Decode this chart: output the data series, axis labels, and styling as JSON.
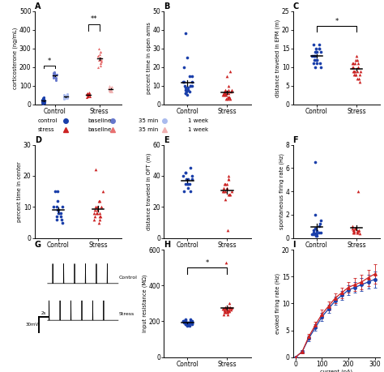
{
  "panel_A": {
    "ylabel": "corticosterone (ng/mL)",
    "control_baseline": [
      10,
      20,
      15,
      30,
      25,
      35,
      40,
      20,
      10,
      15,
      5,
      10,
      25,
      30,
      20
    ],
    "control_35min": [
      150,
      160,
      170,
      140,
      130,
      155,
      165,
      175,
      145,
      155,
      170,
      160,
      155,
      150,
      145
    ],
    "control_1week": [
      40,
      50,
      35,
      45,
      30,
      55,
      48,
      38,
      42,
      37,
      43,
      47,
      50,
      35,
      40
    ],
    "stress_baseline": [
      50,
      60,
      40,
      55,
      65,
      45,
      50,
      60,
      55,
      45,
      50,
      60,
      55,
      50,
      45
    ],
    "stress_35min": [
      220,
      240,
      280,
      200,
      260,
      300,
      250,
      230,
      270,
      210,
      240,
      280,
      220,
      260,
      240
    ],
    "stress_1week": [
      80,
      90,
      70,
      100,
      85,
      75,
      95,
      80,
      85,
      90,
      75,
      80,
      90,
      70,
      85
    ],
    "ylim": [
      0,
      500
    ],
    "yticks": [
      0,
      100,
      200,
      300,
      400,
      500
    ]
  },
  "panel_B": {
    "ylabel": "percent time in open arms",
    "control": [
      8,
      12,
      20,
      15,
      8,
      5,
      10,
      7,
      9,
      12,
      15,
      8,
      6,
      10,
      38,
      25,
      12,
      8,
      10,
      9,
      7,
      6,
      8,
      10
    ],
    "stress": [
      5,
      8,
      3,
      6,
      10,
      4,
      7,
      5,
      6,
      8,
      3,
      5,
      7,
      4,
      15,
      6,
      8,
      4,
      3,
      6,
      5,
      4,
      7,
      18
    ],
    "ylim": [
      0,
      50
    ],
    "yticks": [
      0,
      10,
      20,
      30,
      40,
      50
    ]
  },
  "panel_C": {
    "ylabel": "distance traveled in EPM (m)",
    "control": [
      12,
      14,
      16,
      10,
      13,
      15,
      11,
      14,
      12,
      13,
      16,
      11,
      14,
      15,
      10,
      12,
      13,
      14,
      11,
      13,
      15,
      12,
      14
    ],
    "stress": [
      9,
      11,
      8,
      10,
      12,
      7,
      9,
      11,
      8,
      10,
      9,
      11,
      8,
      10,
      12,
      7,
      9,
      11,
      8,
      10,
      9,
      13,
      6
    ],
    "ylim": [
      0,
      25
    ],
    "yticks": [
      0,
      5,
      10,
      15,
      20,
      25
    ],
    "sig": "*"
  },
  "panel_D": {
    "ylabel": "percent time in center",
    "control": [
      8,
      10,
      15,
      5,
      7,
      9,
      6,
      12,
      8,
      10,
      7,
      9,
      6,
      8,
      10,
      15
    ],
    "stress": [
      22,
      8,
      10,
      6,
      12,
      7,
      9,
      8,
      10,
      6,
      5,
      7,
      9,
      8,
      10,
      12,
      15,
      7,
      8
    ],
    "ylim": [
      0,
      30
    ],
    "yticks": [
      0,
      10,
      20,
      30
    ]
  },
  "panel_E": {
    "ylabel": "distance traveled in OFT (m)",
    "control": [
      35,
      40,
      30,
      38,
      42,
      35,
      45,
      38,
      32,
      40,
      35,
      38,
      42,
      30,
      35
    ],
    "stress": [
      30,
      35,
      28,
      32,
      40,
      28,
      35,
      30,
      25,
      38,
      5,
      30,
      35,
      28,
      32,
      38,
      30
    ],
    "ylim": [
      0,
      60
    ],
    "yticks": [
      0,
      20,
      40,
      60
    ]
  },
  "panel_F": {
    "ylabel": "spontaneous firing rate (Hz)",
    "control": [
      0.2,
      0.5,
      0.3,
      1.5,
      2.0,
      0.8,
      1.2,
      0.4,
      0.6,
      0.3,
      0.5,
      0.4,
      0.8,
      1.0,
      6.5,
      0.3,
      0.5,
      0.2,
      0.7,
      0.4
    ],
    "stress": [
      0.5,
      0.8,
      0.4,
      1.0,
      0.6,
      0.7,
      0.5,
      0.8,
      0.6,
      4.0,
      0.5,
      0.7,
      0.9,
      0.6,
      0.8,
      0.5
    ],
    "ylim": [
      0,
      8
    ],
    "yticks": [
      0,
      2,
      4,
      6,
      8
    ]
  },
  "panel_H": {
    "ylabel": "input resistance (MΩ)",
    "control": [
      180,
      190,
      200,
      185,
      195,
      175,
      210,
      195,
      185,
      200,
      190,
      195,
      185,
      200,
      205,
      180,
      195,
      190,
      200,
      185,
      175,
      210,
      195,
      200,
      195
    ],
    "stress": [
      250,
      270,
      280,
      240,
      260,
      300,
      250,
      270,
      280,
      260,
      250,
      270,
      260,
      280,
      250,
      265,
      275,
      255,
      270,
      260,
      530,
      240,
      265,
      275
    ],
    "ylim": [
      0,
      600
    ],
    "yticks": [
      0,
      200,
      400,
      600
    ],
    "sig": "*"
  },
  "panel_I": {
    "xlabel": "current (pA)",
    "ylabel": "evoked firing rate (Hz)",
    "current": [
      0,
      25,
      50,
      75,
      100,
      125,
      150,
      175,
      200,
      225,
      250,
      275,
      300
    ],
    "control_mean": [
      0.0,
      1.0,
      3.5,
      5.5,
      7.5,
      9.0,
      10.5,
      11.5,
      12.5,
      13.0,
      13.5,
      14.0,
      14.5
    ],
    "control_sem": [
      0,
      0.3,
      0.5,
      0.6,
      0.7,
      0.7,
      0.8,
      0.8,
      0.9,
      1.0,
      1.2,
      1.3,
      1.5
    ],
    "stress_mean": [
      0.0,
      1.0,
      3.8,
      6.0,
      8.0,
      9.5,
      11.0,
      12.0,
      13.0,
      13.5,
      14.0,
      14.8,
      15.5
    ],
    "stress_sem": [
      0,
      0.3,
      0.5,
      0.6,
      0.8,
      0.8,
      0.9,
      1.0,
      1.0,
      1.2,
      1.4,
      1.5,
      1.8
    ],
    "ylim": [
      0,
      20
    ],
    "yticks": [
      0,
      5,
      10,
      15,
      20
    ],
    "xticks": [
      0,
      100,
      200,
      300
    ]
  },
  "legend": {
    "row1": [
      "control",
      "baseline",
      "35 min",
      "1 week"
    ],
    "row2": [
      "stress",
      "baseline",
      "35 min",
      "1 week"
    ]
  },
  "colors": {
    "ctrl_dark": "#1a3faa",
    "ctrl_med": "#6677cc",
    "ctrl_light": "#aabbee",
    "str_dark": "#cc2222",
    "str_med": "#e87070",
    "str_light": "#f0b0b0"
  }
}
